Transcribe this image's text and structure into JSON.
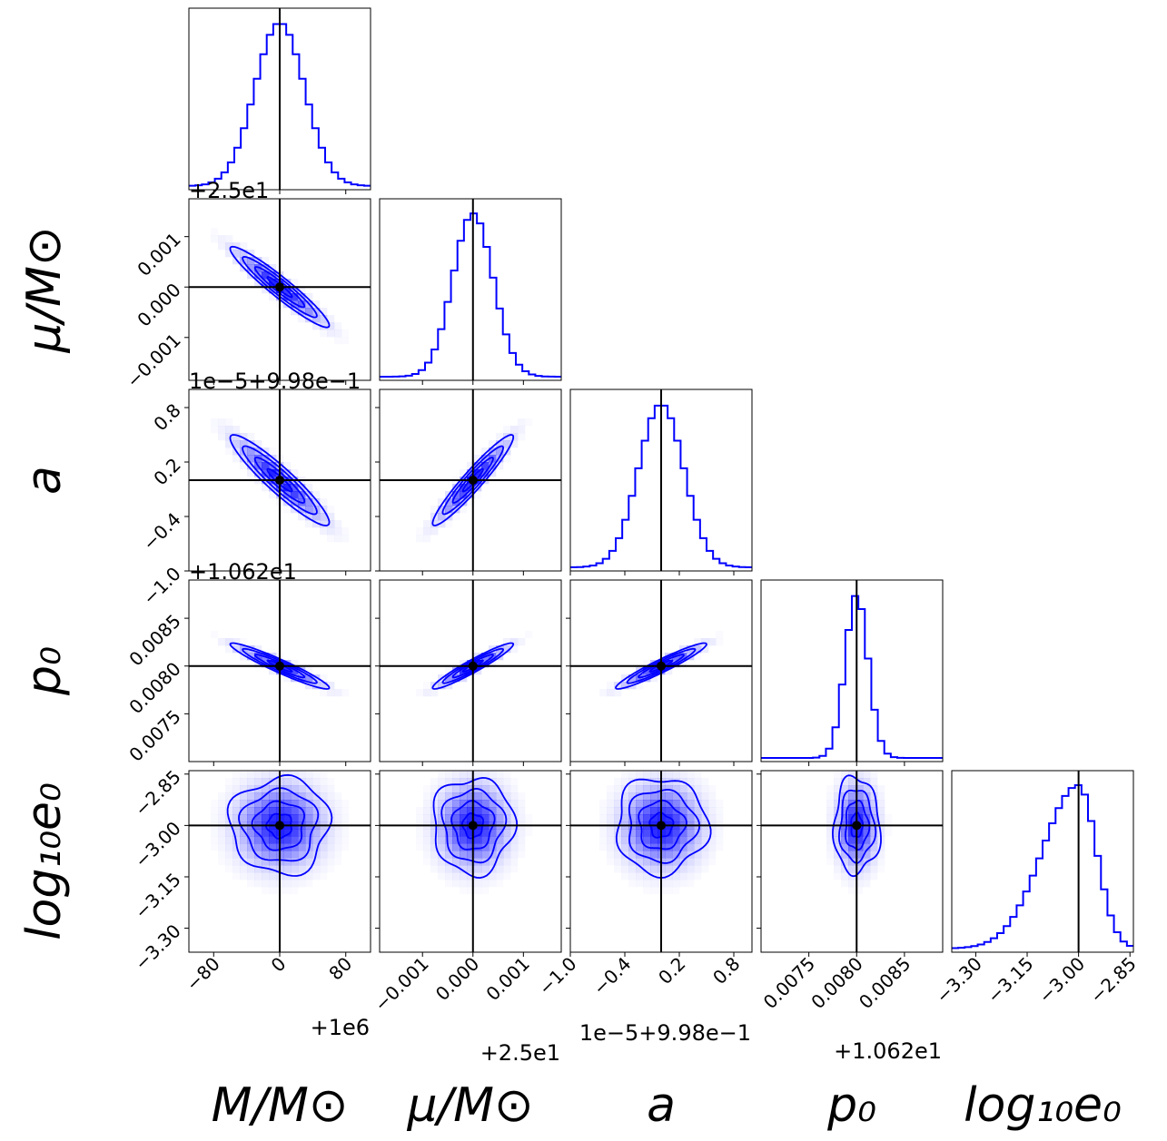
{
  "chart_data": {
    "type": "corner",
    "parameters": [
      {
        "id": "M",
        "xlabel": "M/M⊙",
        "ylabel": "",
        "offset": "+1e6",
        "center": 0,
        "sigma": 30,
        "range": [
          -110,
          110
        ],
        "ticks": [
          -80,
          0,
          80
        ],
        "tick_labels": [
          "−80",
          "0",
          "80"
        ],
        "truth": 0
      },
      {
        "id": "mu",
        "xlabel": "μ/M⊙",
        "ylabel": "μ/M⊙",
        "offset": "+2.5e1",
        "center": 0,
        "sigma": 0.0004,
        "range": [
          -0.00185,
          0.00175
        ],
        "ticks": [
          -0.001,
          0,
          0.001
        ],
        "tick_labels": [
          "−0.001",
          "0.000",
          "0.001"
        ],
        "truth": 0
      },
      {
        "id": "a",
        "xlabel": "a",
        "ylabel": "a",
        "offset": "1e−5+9.98e−1",
        "center": 0,
        "sigma": 0.25,
        "range": [
          -1.0,
          1.0
        ],
        "ticks": [
          -1.0,
          -0.4,
          0.2,
          0.8
        ],
        "tick_labels": [
          "−1.0",
          "−0.4",
          "0.2",
          "0.8"
        ],
        "truth": 0
      },
      {
        "id": "p0",
        "xlabel": "p₀",
        "ylabel": "p₀",
        "offset": "+1.062e1",
        "center": 0.008,
        "sigma": 0.00012,
        "range": [
          0.007,
          0.0089
        ],
        "ticks": [
          0.0075,
          0.008,
          0.0085
        ],
        "tick_labels": [
          "0.0075",
          "0.0080",
          "0.0085"
        ],
        "truth": 0.008
      },
      {
        "id": "loge0",
        "xlabel": "log₁₀e₀",
        "ylabel": "log₁₀e₀",
        "offset": "",
        "center": -3.0,
        "sigma": 0.07,
        "range": [
          -3.37,
          -2.84
        ],
        "ticks": [
          -3.3,
          -3.15,
          -3.0,
          -2.85
        ],
        "tick_labels": [
          "−3.30",
          "−3.15",
          "−3.00",
          "−2.85"
        ],
        "truth": -3.0
      }
    ],
    "correlations": {
      "M-mu": -0.95,
      "M-a": -0.93,
      "M-p0": -0.95,
      "mu-a": 0.95,
      "mu-p0": 0.95,
      "a-p0": 0.95,
      "M-loge0": 0,
      "mu-loge0": 0,
      "a-loge0": 0,
      "p0-loge0": 0
    },
    "contour_levels_sigma": [
      0.5,
      1.0,
      1.5,
      2.0
    ],
    "color": "#0000ff",
    "truth_color": "#000000"
  }
}
